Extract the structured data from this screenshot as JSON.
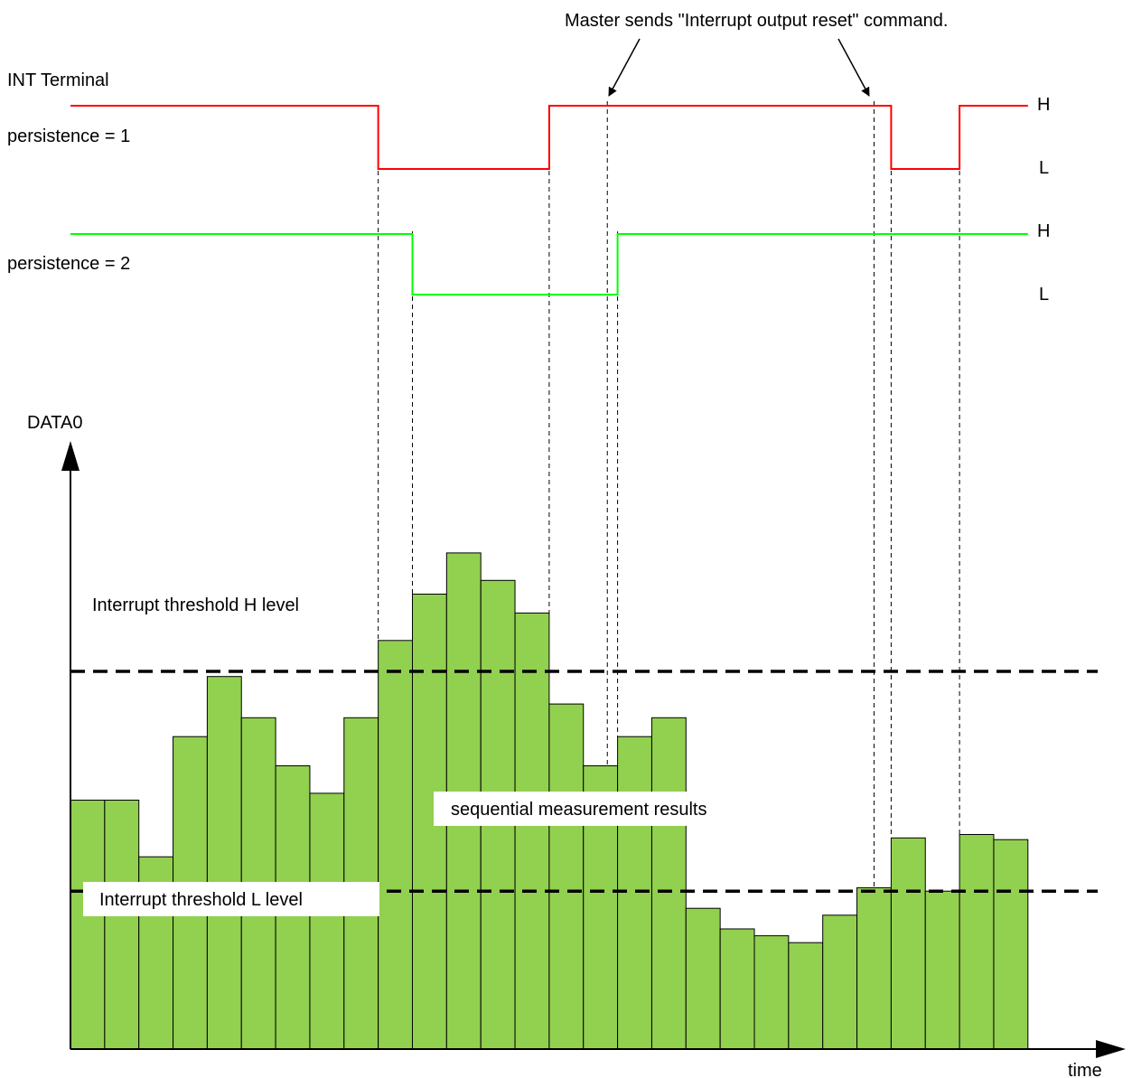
{
  "labels": {
    "int_terminal": "INT Terminal",
    "persistence_1": "persistence = 1",
    "persistence_2": "persistence = 2",
    "h_1": "H",
    "l_1": "L",
    "h_2": "H",
    "l_2": "L",
    "master_annotation": "Master sends \"Interrupt output reset\" command.",
    "data0": "DATA0",
    "threshold_h": "Interrupt threshold H level",
    "threshold_l": "Interrupt threshold L level",
    "sequential": "sequential measurement results",
    "time": "time"
  },
  "colors": {
    "bar_fill": "#92d050",
    "bar_stroke": "#000000",
    "signal_persistence_1": "#ff0000",
    "signal_persistence_2": "#00ff00",
    "threshold_line": "#000000",
    "guide_line": "#000000"
  },
  "measurements": {
    "count": 28,
    "threshold_h_level": 220,
    "threshold_l_level": 92,
    "values": [
      145,
      145,
      112,
      182,
      217,
      193,
      165,
      149,
      193,
      238,
      265,
      289,
      273,
      254,
      201,
      165,
      182,
      193,
      82,
      70,
      66,
      62,
      78,
      94,
      123,
      92,
      125,
      122
    ]
  },
  "signals": {
    "persistence_1": [
      "H",
      "H",
      "H",
      "H",
      "H",
      "H",
      "H",
      "H",
      "H",
      "L",
      "L",
      "L",
      "L",
      "L",
      "H",
      "H",
      "H",
      "H",
      "H",
      "H",
      "H",
      "H",
      "H",
      "H",
      "L",
      "L",
      "H",
      "H"
    ],
    "persistence_2": [
      "H",
      "H",
      "H",
      "H",
      "H",
      "H",
      "H",
      "H",
      "H",
      "H",
      "L",
      "L",
      "L",
      "L",
      "L",
      "L",
      "H",
      "H",
      "H",
      "H",
      "H",
      "H",
      "H",
      "H",
      "H",
      "H",
      "H",
      "H"
    ]
  },
  "reset_commands": [
    {
      "bar_index": 15,
      "offset": 0.7
    },
    {
      "bar_index": 23,
      "offset": 0.5
    }
  ]
}
